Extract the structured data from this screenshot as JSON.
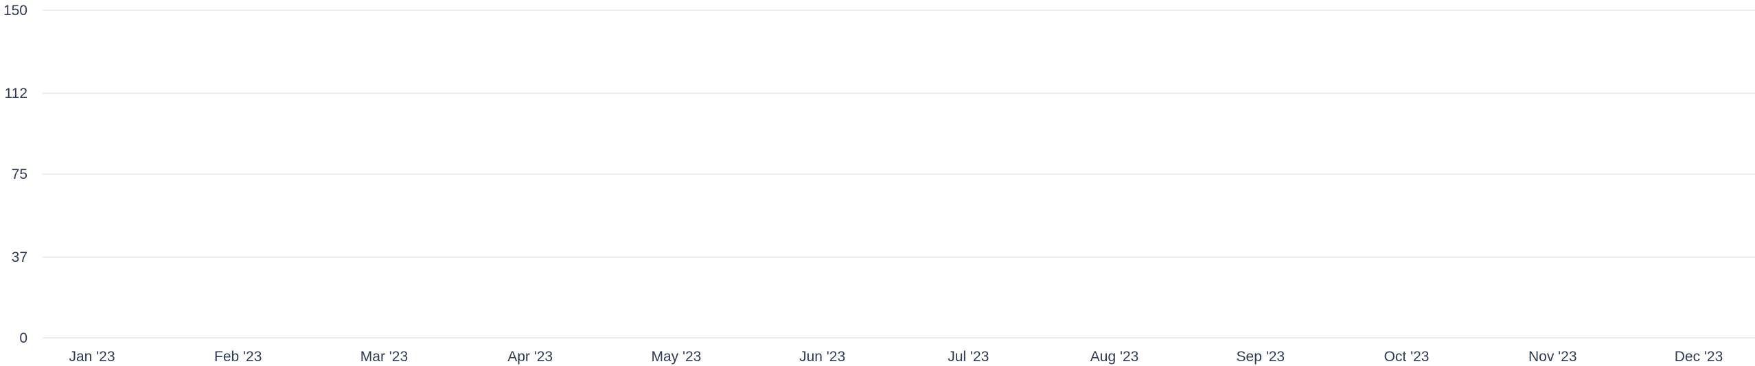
{
  "chart_data": {
    "type": "line",
    "title": "",
    "xlabel": "",
    "ylabel": "",
    "categories": [
      "Jan '23",
      "Feb '23",
      "Mar '23",
      "Apr '23",
      "May '23",
      "Jun '23",
      "Jul '23",
      "Aug '23",
      "Sep '23",
      "Oct '23",
      "Nov '23",
      "Dec '23"
    ],
    "y_ticks": [
      "0",
      "37",
      "75",
      "112",
      "150"
    ],
    "ylim": [
      0,
      150
    ],
    "grid": true,
    "series": [],
    "colors": {
      "grid": "#e5e7eb",
      "tick_text": "#2f3b52"
    }
  }
}
